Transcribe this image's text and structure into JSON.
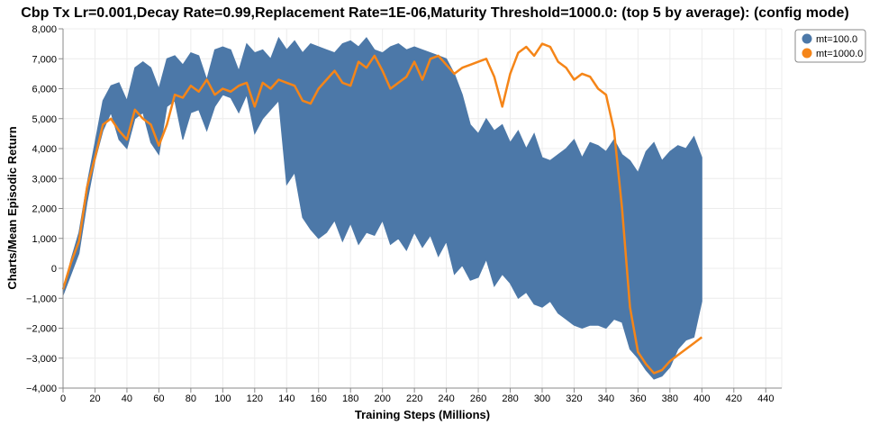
{
  "chart_data": {
    "type": "line",
    "title": "Cbp Tx Lr=0.001,Decay Rate=0.99,Replacement Rate=1E-06,Maturity Threshold=1000.0: (top 5 by average): (config mode)",
    "xlabel": "Training Steps (Millions)",
    "ylabel": "Charts/Mean Episodic Return",
    "xlim": [
      0,
      450
    ],
    "ylim": [
      -4000,
      8000
    ],
    "xticks": [
      0,
      20,
      40,
      60,
      80,
      100,
      120,
      140,
      160,
      180,
      200,
      220,
      240,
      260,
      280,
      300,
      320,
      340,
      360,
      380,
      400,
      420,
      440
    ],
    "yticks": [
      -4000,
      -3000,
      -2000,
      -1000,
      0,
      1000,
      2000,
      3000,
      4000,
      5000,
      6000,
      7000,
      8000
    ],
    "ytick_labels": [
      "−4,000",
      "−3,000",
      "−2,000",
      "−1,000",
      "0",
      "1,000",
      "2,000",
      "3,000",
      "4,000",
      "5,000",
      "6,000",
      "7,000",
      "8,000"
    ],
    "grid": true,
    "legend_position": "top-right",
    "series": [
      {
        "name": "mt=100.0",
        "color": "#4c78a8",
        "x": [
          0,
          5,
          10,
          15,
          20,
          25,
          30,
          35,
          40,
          45,
          50,
          55,
          60,
          65,
          70,
          75,
          80,
          85,
          90,
          95,
          100,
          105,
          110,
          115,
          120,
          125,
          130,
          135,
          140,
          145,
          150,
          155,
          160,
          165,
          170,
          175,
          180,
          185,
          190,
          195,
          200,
          205,
          210,
          215,
          220,
          225,
          230,
          235,
          240,
          245,
          250,
          255,
          260,
          265,
          270,
          275,
          280,
          285,
          290,
          295,
          300,
          305,
          310,
          315,
          320,
          325,
          330,
          335,
          340,
          345,
          350,
          355,
          360,
          365,
          370,
          375,
          380,
          385,
          390,
          395,
          400
        ],
        "upper": [
          -800,
          300,
          1200,
          2800,
          4200,
          5600,
          6100,
          6200,
          5600,
          6700,
          6900,
          6700,
          6000,
          7000,
          7100,
          6800,
          7200,
          7100,
          6300,
          7300,
          7400,
          7300,
          6600,
          7500,
          7200,
          7300,
          7000,
          7700,
          7300,
          7600,
          7200,
          7500,
          7400,
          7300,
          7200,
          7500,
          7600,
          7400,
          7700,
          7300,
          7200,
          7400,
          7500,
          7300,
          7400,
          7300,
          7200,
          7100,
          7000,
          6500,
          5800,
          4800,
          4500,
          5000,
          4600,
          4800,
          4200,
          4600,
          4000,
          4500,
          3700,
          3600,
          3800,
          4000,
          4300,
          3700,
          4200,
          4100,
          3900,
          4300,
          3800,
          3600,
          3200,
          3900,
          4200,
          3600,
          3900,
          4100,
          4000,
          4400,
          3700
        ],
        "lower": [
          -900,
          -200,
          500,
          2200,
          3600,
          4600,
          5200,
          4300,
          4000,
          5000,
          5200,
          4200,
          3800,
          5400,
          5600,
          4300,
          5200,
          5300,
          4600,
          5400,
          5800,
          5700,
          5200,
          5800,
          4500,
          5000,
          5300,
          5600,
          2800,
          3200,
          1700,
          1300,
          1000,
          1200,
          1600,
          900,
          1500,
          800,
          1200,
          1100,
          1600,
          800,
          1000,
          600,
          1200,
          700,
          1100,
          400,
          900,
          -200,
          100,
          -400,
          -300,
          300,
          -600,
          -200,
          -500,
          -1000,
          -800,
          -1200,
          -1300,
          -1100,
          -1500,
          -1700,
          -1900,
          -2000,
          -1900,
          -1900,
          -2000,
          -1700,
          -1800,
          -2700,
          -3000,
          -3400,
          -3700,
          -3600,
          -3300,
          -2700,
          -2400,
          -2300,
          -1100
        ]
      },
      {
        "name": "mt=1000.0",
        "color": "#f58518",
        "x": [
          0,
          5,
          10,
          15,
          20,
          25,
          30,
          35,
          40,
          45,
          50,
          55,
          60,
          65,
          70,
          75,
          80,
          85,
          90,
          95,
          100,
          105,
          110,
          115,
          120,
          125,
          130,
          135,
          140,
          145,
          150,
          155,
          160,
          165,
          170,
          175,
          180,
          185,
          190,
          195,
          200,
          205,
          210,
          215,
          220,
          225,
          230,
          235,
          240,
          245,
          250,
          255,
          260,
          265,
          270,
          275,
          280,
          285,
          290,
          295,
          300,
          305,
          310,
          315,
          320,
          325,
          330,
          335,
          340,
          345,
          350,
          355,
          360,
          365,
          370,
          375,
          380,
          385,
          390,
          395,
          400
        ],
        "values": [
          -700,
          200,
          900,
          2700,
          3700,
          4800,
          5000,
          4600,
          4300,
          5300,
          5000,
          4800,
          4100,
          4800,
          5800,
          5700,
          6100,
          5900,
          6300,
          5800,
          6000,
          5900,
          6100,
          6200,
          5400,
          6200,
          6000,
          6300,
          6200,
          6100,
          5600,
          5500,
          6000,
          6300,
          6600,
          6200,
          6100,
          6900,
          6700,
          7100,
          6600,
          6000,
          6200,
          6400,
          6900,
          6300,
          7000,
          7100,
          6800,
          6500,
          6700,
          6800,
          6900,
          7000,
          6400,
          5400,
          6500,
          7200,
          7400,
          7100,
          7500,
          7400,
          6900,
          6700,
          6300,
          6500,
          6400,
          6000,
          5800,
          4600,
          2000,
          -1300,
          -2800,
          -3200,
          -3500,
          -3400,
          -3100,
          -2900,
          -2700,
          -2500,
          -2300
        ]
      }
    ]
  }
}
